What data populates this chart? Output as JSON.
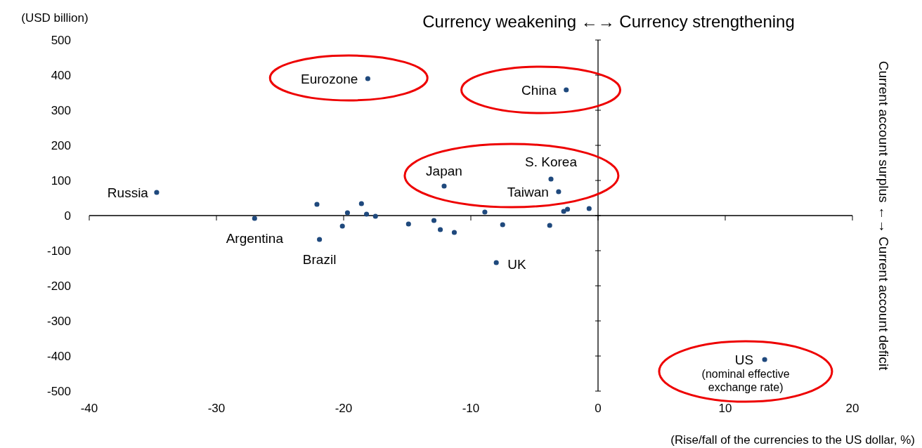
{
  "chart_data": {
    "type": "scatter",
    "ylabel": "(USD billion)",
    "xlabel": "(Rise/fall of the currencies to the US dollar, %)",
    "x": [
      -34.7,
      -27.0,
      -22.1,
      -21.9,
      -20.1,
      -19.7,
      -18.6,
      -18.2,
      -17.5,
      -18.1,
      -14.9,
      -12.9,
      -12.4,
      -12.1,
      -11.3,
      -8.9,
      -8.0,
      -7.5,
      -3.8,
      -3.7,
      -3.1,
      -2.7,
      -2.4,
      -2.5,
      -0.7,
      13.1
    ],
    "series": [
      {
        "color": "#1f497d",
        "values": [
          66,
          -8,
          32,
          -68,
          -30,
          8,
          34,
          4,
          -2,
          390,
          -24,
          -14,
          -40,
          84,
          -48,
          10,
          -134,
          -26,
          -28,
          104,
          68,
          12,
          18,
          358,
          20,
          -410
        ]
      }
    ],
    "xlim": [
      -40,
      20
    ],
    "xticks": [
      -40,
      -30,
      -20,
      -10,
      0,
      10,
      20
    ],
    "ylim": [
      -500,
      500
    ],
    "yticks": [
      -500,
      -400,
      -300,
      -200,
      -100,
      0,
      100,
      200,
      300,
      400,
      500
    ],
    "marker": "circle",
    "annotations": [
      {
        "text": "Russia",
        "x": -34.7,
        "y": 66
      },
      {
        "text": "Eurozone",
        "x": -18.1,
        "y": 390
      },
      {
        "text": "China",
        "x": -2.5,
        "y": 358
      },
      {
        "text": "Japan",
        "x": -12.1,
        "y": 84
      },
      {
        "text": "S. Korea",
        "x": -3.7,
        "y": 104
      },
      {
        "text": "Taiwan",
        "x": -3.1,
        "y": 68
      },
      {
        "text": "Argentina",
        "x": -27.0,
        "y": -8
      },
      {
        "text": "Brazil",
        "x": -21.9,
        "y": -68
      },
      {
        "text": "UK",
        "x": -8.0,
        "y": -134
      },
      {
        "text": "US",
        "x": 13.1,
        "y": -410
      },
      {
        "text": "(nominal effective exchange rate)",
        "x": 13.1,
        "y": -410
      },
      "Currency weakening ←→ Currency strengthening",
      "Current account surplus ←→ Current account deficit"
    ]
  }
}
